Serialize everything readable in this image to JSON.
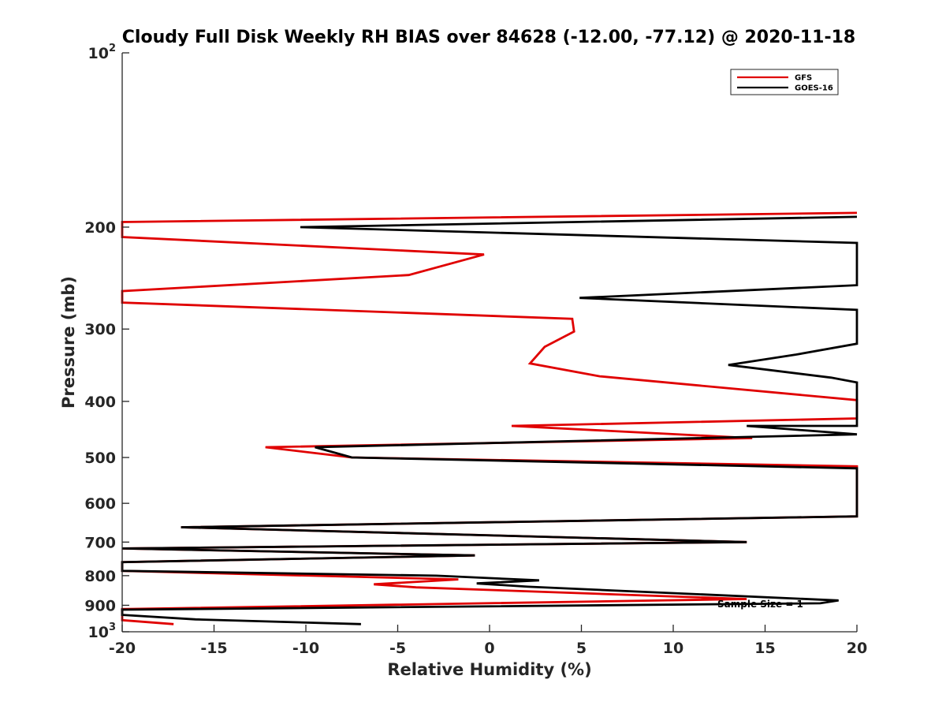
{
  "chart_data": {
    "type": "line",
    "title": "Cloudy Full Disk Weekly RH BIAS over 84628 (-12.00, -77.12) @ 2020-11-18",
    "xlabel": "Relative Humidity (%)",
    "ylabel": "Pressure (mb)",
    "xlim": [
      -20,
      20
    ],
    "ylim": [
      100,
      1000
    ],
    "y_scale": "log",
    "y_reversed": true,
    "x_ticks": [
      -20,
      -15,
      -10,
      -5,
      0,
      5,
      10,
      15,
      20
    ],
    "x_tick_labels": [
      "-20",
      "-15",
      "-10",
      "-5",
      "0",
      "5",
      "10",
      "15",
      "20"
    ],
    "y_ticks": [
      100,
      200,
      300,
      400,
      500,
      600,
      700,
      800,
      900,
      1000
    ],
    "y_tick_labels": [
      {
        "base": "10",
        "exp": "2"
      },
      {
        "base": "200",
        "exp": ""
      },
      {
        "base": "300",
        "exp": ""
      },
      {
        "base": "400",
        "exp": ""
      },
      {
        "base": "500",
        "exp": ""
      },
      {
        "base": "600",
        "exp": ""
      },
      {
        "base": "700",
        "exp": ""
      },
      {
        "base": "800",
        "exp": ""
      },
      {
        "base": "900",
        "exp": ""
      },
      {
        "base": "10",
        "exp": "3"
      }
    ],
    "grid": false,
    "legend_position": "top-right",
    "annotation": "Sample Size = 1",
    "series": [
      {
        "name": "GFS",
        "color": "#e00000",
        "points": [
          [
            20,
            189
          ],
          [
            -20,
            196
          ],
          [
            -20,
            208
          ],
          [
            -0.3,
            223
          ],
          [
            -4.4,
            242
          ],
          [
            -20,
            258
          ],
          [
            -20,
            270
          ],
          [
            4.5,
            288
          ],
          [
            4.6,
            303
          ],
          [
            3,
            322
          ],
          [
            2.2,
            344
          ],
          [
            6,
            362
          ],
          [
            20,
            398
          ],
          [
            20,
            428
          ],
          [
            1.2,
            441
          ],
          [
            14.3,
            463
          ],
          [
            -12.2,
            480
          ],
          [
            -7.5,
            500
          ],
          [
            20,
            518
          ],
          [
            20,
            632
          ],
          [
            -16.8,
            660
          ],
          [
            14,
            700
          ],
          [
            -20,
            718
          ],
          [
            -0.8,
            738
          ],
          [
            -20,
            758
          ],
          [
            -20,
            785
          ],
          [
            -1.7,
            812
          ],
          [
            -6.3,
            828
          ],
          [
            -4,
            838
          ],
          [
            14,
            878
          ],
          [
            -20,
            914
          ],
          [
            -20,
            955
          ],
          [
            -17.2,
            970
          ]
        ]
      },
      {
        "name": "GOES-16",
        "color": "#000000",
        "points": [
          [
            20,
            192
          ],
          [
            -10.3,
            200
          ],
          [
            20,
            213
          ],
          [
            20,
            252
          ],
          [
            4.9,
            265
          ],
          [
            20,
            278
          ],
          [
            20,
            318
          ],
          [
            16.7,
            332
          ],
          [
            13,
            346
          ],
          [
            18.6,
            364
          ],
          [
            20,
            371
          ],
          [
            20,
            441
          ],
          [
            14,
            441
          ],
          [
            20,
            456
          ],
          [
            -9.5,
            480
          ],
          [
            -7.5,
            500
          ],
          [
            20,
            522
          ],
          [
            20,
            632
          ],
          [
            -16.8,
            660
          ],
          [
            14,
            700
          ],
          [
            -20,
            718
          ],
          [
            -0.8,
            738
          ],
          [
            -20,
            758
          ],
          [
            -20,
            785
          ],
          [
            -2.9,
            800
          ],
          [
            2.7,
            815
          ],
          [
            -0.7,
            825
          ],
          [
            2.1,
            836
          ],
          [
            19,
            883
          ],
          [
            18,
            893
          ],
          [
            -20,
            916
          ],
          [
            -20,
            935
          ],
          [
            -16,
            952
          ],
          [
            -7,
            970
          ]
        ]
      }
    ]
  }
}
